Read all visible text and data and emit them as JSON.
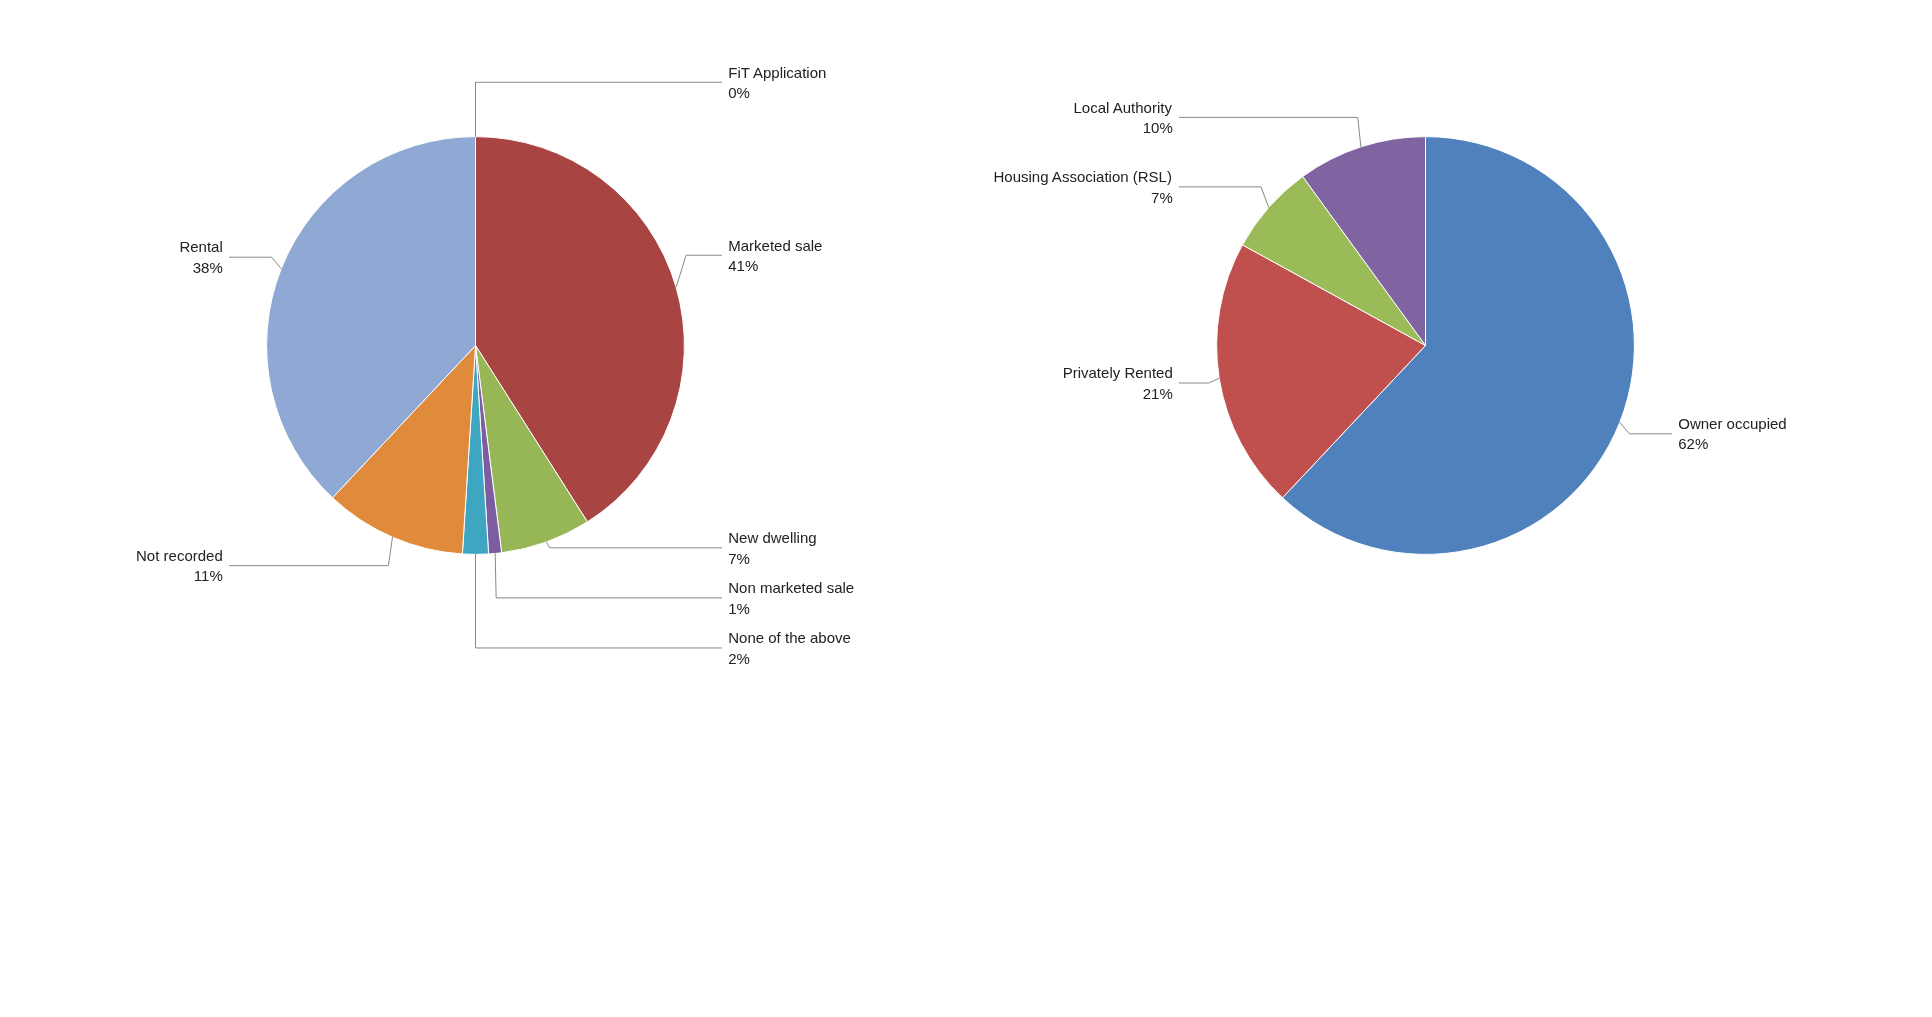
{
  "chart_data": [
    {
      "type": "pie",
      "categories": [
        "FiT Application",
        "Marketed sale",
        "New dwelling",
        "Non marketed sale",
        "None of the above",
        "Not recorded",
        "Rental"
      ],
      "values": [
        0,
        41,
        7,
        1,
        2,
        11,
        38
      ],
      "colors": [
        "#4f81bd",
        "#a84543",
        "#97b655",
        "#7c5ea0",
        "#3ea6c0",
        "#e08a3c",
        "#8fa9d4"
      ],
      "value_labels": [
        "0%",
        "41%",
        "7%",
        "1%",
        "2%",
        "11%",
        "38%"
      ]
    },
    {
      "type": "pie",
      "categories": [
        "Owner occupied",
        "Privately Rented",
        "Housing Association (RSL)",
        "Local Authority"
      ],
      "values": [
        62,
        21,
        7,
        10
      ],
      "colors": [
        "#4f81bd",
        "#c0504d",
        "#9bbb59",
        "#8064a2"
      ],
      "value_labels": [
        "62%",
        "21%",
        "7%",
        "10%"
      ]
    }
  ]
}
